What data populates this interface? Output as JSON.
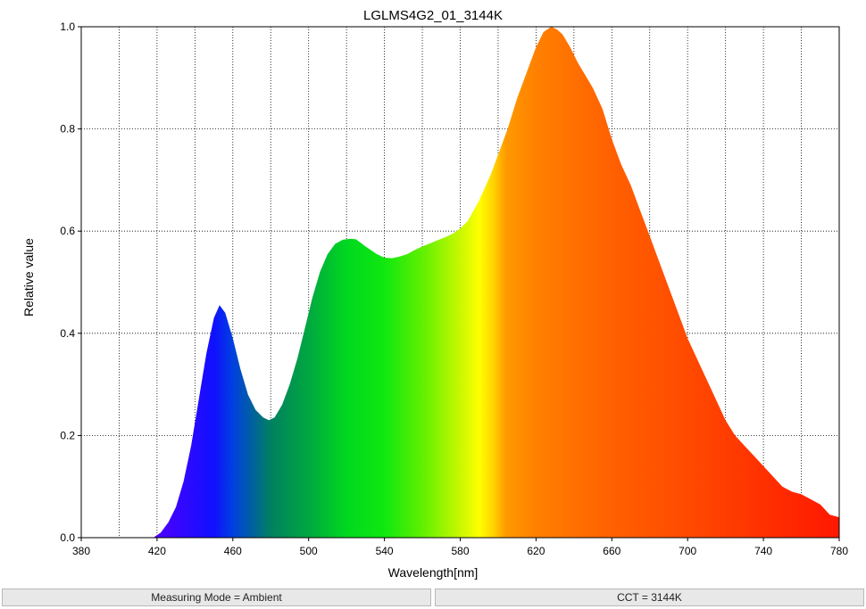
{
  "chart_data": {
    "type": "area",
    "title": "LGLMS4G2_01_3144K",
    "xlabel": "Wavelength[nm]",
    "ylabel": "Relative value",
    "xlim": [
      380,
      780
    ],
    "ylim": [
      0,
      1.0
    ],
    "x_ticks": [
      380,
      420,
      460,
      500,
      540,
      580,
      620,
      660,
      700,
      740,
      780
    ],
    "y_ticks": [
      "0.0",
      "0.2",
      "0.4",
      "0.6",
      "0.8",
      "1.0"
    ],
    "grid": true,
    "fill": "spectral",
    "series": [
      {
        "x": [
          418,
          422,
          426,
          430,
          434,
          438,
          442,
          446,
          450,
          453,
          456,
          460,
          464,
          468,
          472,
          476,
          479,
          482,
          486,
          490,
          494,
          498,
          502,
          506,
          510,
          514,
          518,
          522,
          525,
          530,
          536,
          540,
          544,
          548,
          552,
          556,
          560,
          564,
          568,
          572,
          576,
          580,
          584,
          590,
          596,
          600,
          605,
          610,
          615,
          620,
          624,
          628,
          631,
          634,
          638,
          642,
          646,
          650,
          655,
          660,
          665,
          670,
          675,
          680,
          685,
          690,
          695,
          700,
          705,
          710,
          715,
          720,
          725,
          730,
          735,
          740,
          745,
          750,
          755,
          760,
          765,
          770,
          775,
          780
        ],
        "y": [
          0.0,
          0.01,
          0.03,
          0.06,
          0.11,
          0.18,
          0.27,
          0.36,
          0.43,
          0.455,
          0.44,
          0.39,
          0.33,
          0.28,
          0.25,
          0.235,
          0.23,
          0.235,
          0.26,
          0.3,
          0.35,
          0.41,
          0.47,
          0.52,
          0.555,
          0.575,
          0.583,
          0.585,
          0.584,
          0.57,
          0.555,
          0.548,
          0.547,
          0.55,
          0.555,
          0.563,
          0.57,
          0.576,
          0.582,
          0.588,
          0.595,
          0.605,
          0.62,
          0.66,
          0.71,
          0.75,
          0.8,
          0.86,
          0.91,
          0.96,
          0.99,
          1.0,
          0.995,
          0.985,
          0.96,
          0.93,
          0.905,
          0.88,
          0.84,
          0.78,
          0.73,
          0.69,
          0.64,
          0.59,
          0.54,
          0.49,
          0.44,
          0.39,
          0.35,
          0.31,
          0.27,
          0.23,
          0.2,
          0.18,
          0.16,
          0.14,
          0.12,
          0.1,
          0.09,
          0.085,
          0.075,
          0.065,
          0.045,
          0.04
        ]
      }
    ]
  },
  "status": {
    "measuring_mode": "Measuring Mode = Ambient",
    "cct": "CCT = 3144K"
  }
}
